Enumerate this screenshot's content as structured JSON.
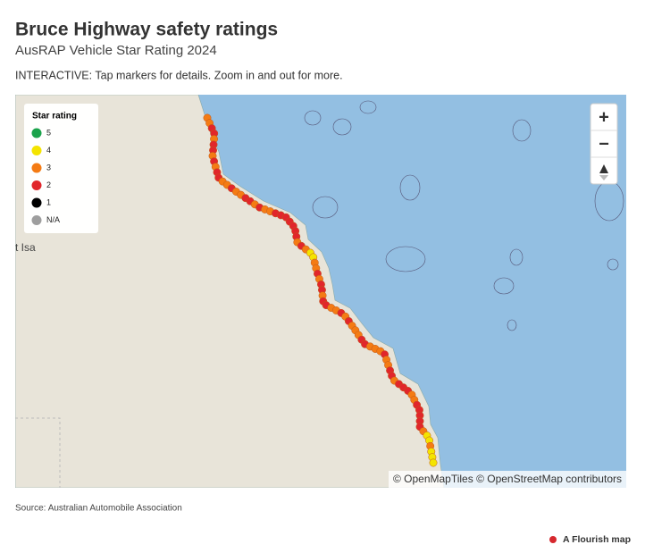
{
  "header": {
    "title": "Bruce Highway safety ratings",
    "subtitle": "AusRAP Vehicle Star Rating 2024",
    "instruction": "INTERACTIVE: Tap markers for details. Zoom in and out for more."
  },
  "legend": {
    "title": "Star rating",
    "items": [
      {
        "label": "5",
        "color": "#1ba34b"
      },
      {
        "label": "4",
        "color": "#f4e400"
      },
      {
        "label": "3",
        "color": "#f47b14"
      },
      {
        "label": "2",
        "color": "#e1262b"
      },
      {
        "label": "1",
        "color": "#000000"
      },
      {
        "label": "N/A",
        "color": "#9e9e9e"
      }
    ]
  },
  "map": {
    "place_labels": [
      "t Isa"
    ],
    "zoom_in": "+",
    "zoom_out": "−",
    "attribution": "© OpenMapTiles © OpenStreetMap contributors",
    "route_ratings": [
      3,
      3,
      2,
      2,
      3,
      2,
      2,
      3,
      2,
      3,
      2,
      2,
      3,
      3,
      2,
      3,
      3,
      2,
      2,
      3,
      2,
      3,
      3,
      2,
      2,
      2,
      2,
      2,
      2,
      2,
      3,
      2,
      3,
      4,
      4,
      3,
      3,
      2,
      3,
      2,
      2,
      3,
      2,
      2,
      3,
      3,
      2,
      3,
      2,
      3,
      3,
      3,
      2,
      2,
      3,
      3,
      3,
      2,
      3,
      3,
      2,
      2,
      3,
      2,
      2,
      2,
      3,
      3,
      2,
      2,
      2,
      2,
      2,
      3,
      4,
      4,
      3,
      4,
      4,
      4
    ]
  },
  "footer": {
    "source": "Source: Australian Automobile Association",
    "credit": "A Flourish map"
  }
}
